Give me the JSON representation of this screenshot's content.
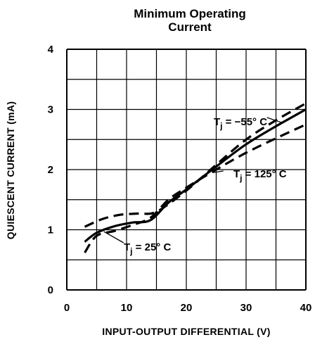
{
  "chart_data": {
    "type": "line",
    "title_line1": "Minimum Operating",
    "title_line2": "Current",
    "xlabel": "INPUT-OUTPUT DIFFERENTIAL (V)",
    "ylabel": "QUIESCENT CURRENT (mA)",
    "xlim": [
      0,
      40
    ],
    "ylim": [
      0,
      4
    ],
    "x_ticks": [
      "0",
      "10",
      "20",
      "30",
      "40"
    ],
    "y_ticks": [
      "0",
      "1",
      "2",
      "3",
      "4"
    ],
    "grid": true,
    "series": [
      {
        "name": "T_j = 25°C",
        "style": "solid",
        "points": [
          [
            3,
            0.8
          ],
          [
            5,
            0.95
          ],
          [
            8,
            1.06
          ],
          [
            11,
            1.12
          ],
          [
            14,
            1.16
          ],
          [
            17,
            1.45
          ],
          [
            20,
            1.67
          ],
          [
            25,
            2.05
          ],
          [
            30,
            2.42
          ],
          [
            35,
            2.72
          ],
          [
            40,
            3.0
          ]
        ]
      },
      {
        "name": "T_j = −55°C",
        "style": "dashed",
        "points": [
          [
            3,
            1.05
          ],
          [
            6,
            1.18
          ],
          [
            9,
            1.25
          ],
          [
            12,
            1.27
          ],
          [
            15,
            1.3
          ],
          [
            20,
            1.65
          ],
          [
            25,
            2.08
          ],
          [
            30,
            2.5
          ],
          [
            35,
            2.82
          ],
          [
            40,
            3.1
          ]
        ]
      },
      {
        "name": "T_j = 125°C",
        "style": "dashed",
        "points": [
          [
            3,
            0.62
          ],
          [
            5,
            0.9
          ],
          [
            8,
            0.98
          ],
          [
            11,
            1.08
          ],
          [
            14,
            1.2
          ],
          [
            17,
            1.5
          ],
          [
            20,
            1.7
          ],
          [
            25,
            2.0
          ],
          [
            30,
            2.28
          ],
          [
            35,
            2.52
          ],
          [
            40,
            2.75
          ]
        ]
      }
    ],
    "annotations": [
      {
        "prefix": "T",
        "sub": "j",
        "rest": " = −55° C"
      },
      {
        "prefix": "T",
        "sub": "j",
        "rest": " = 125° C"
      },
      {
        "prefix": "T",
        "sub": "j",
        "rest": " = 25° C"
      }
    ]
  }
}
